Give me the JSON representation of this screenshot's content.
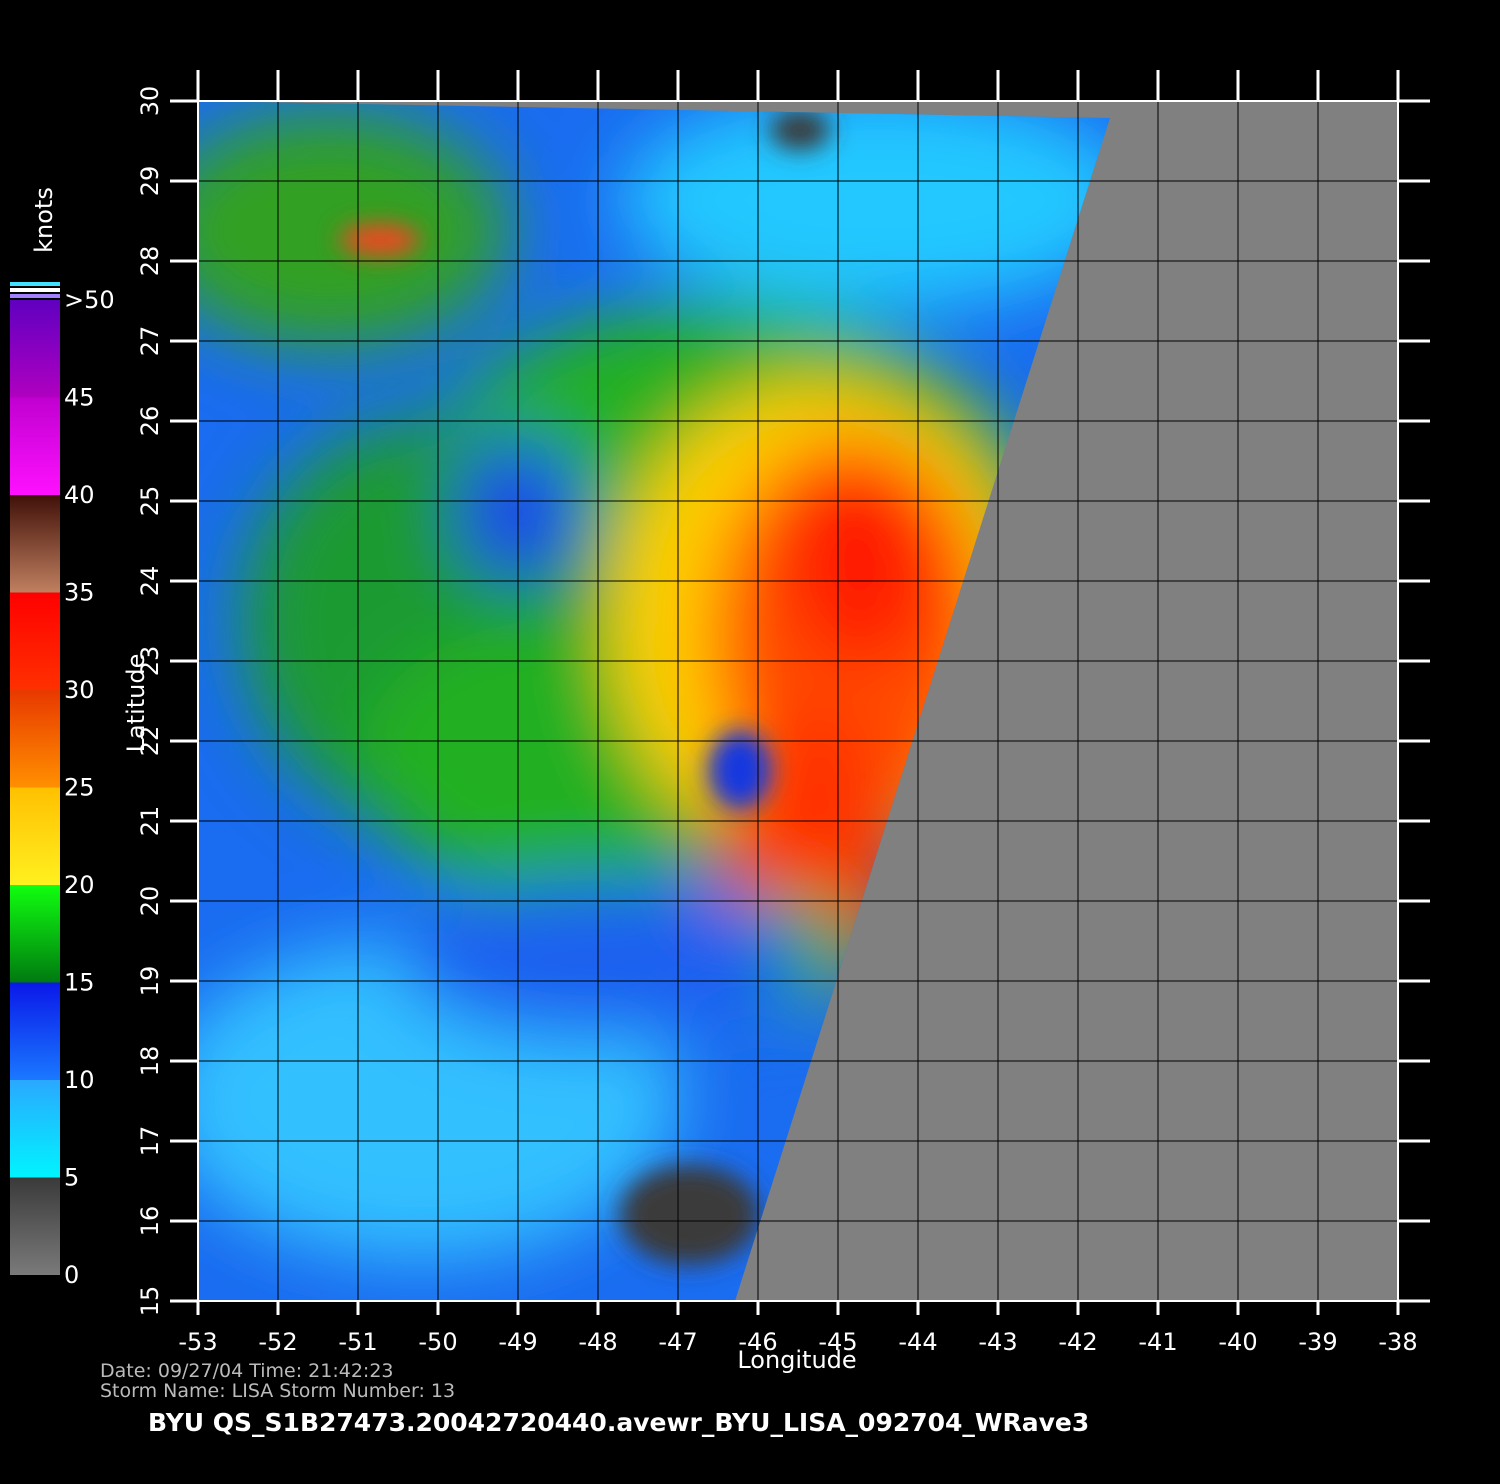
{
  "chart_data": {
    "type": "wind-map",
    "xlabel": "Longitude",
    "ylabel": "Latitude",
    "xlim": [
      -53,
      -38
    ],
    "ylim": [
      15,
      30
    ],
    "xticks": [
      -53,
      -52,
      -51,
      -50,
      -49,
      -48,
      -47,
      -46,
      -45,
      -44,
      -43,
      -42,
      -41,
      -40,
      -39,
      -38
    ],
    "yticks": [
      15,
      16,
      17,
      18,
      19,
      20,
      21,
      22,
      23,
      24,
      25,
      26,
      27,
      28,
      29,
      30
    ],
    "grid": true,
    "colorbar": {
      "label": "knots",
      "ticks": [
        0,
        5,
        10,
        15,
        20,
        25,
        30,
        35,
        40,
        45,
        {
          "value": 50,
          "label": ">50"
        }
      ],
      "colors": [
        [
          "#7a7a7a",
          "#3a3a3a"
        ],
        [
          "#00f4ff",
          "#2aa8ff"
        ],
        [
          "#1a78ff",
          "#0a18e8"
        ],
        [
          "#007a10",
          "#10ff10"
        ],
        [
          "#fff020",
          "#ffc000"
        ],
        [
          "#ff9000",
          "#e83800"
        ],
        [
          "#ff3000",
          "#ff0000"
        ],
        [
          "#c08060",
          "#401008"
        ],
        [
          "#ff10ff",
          "#c000d0"
        ],
        [
          "#b000c0",
          "#6000c0"
        ]
      ]
    },
    "info_line_1": "Date: 09/27/04   Time: 21:42:23",
    "info_line_2": "Storm  Name: LISA   Storm  Number: 13",
    "title": "BYU  QS_S1B27473.20042720440.avewr_BYU_LISA_092704_WRave3"
  }
}
